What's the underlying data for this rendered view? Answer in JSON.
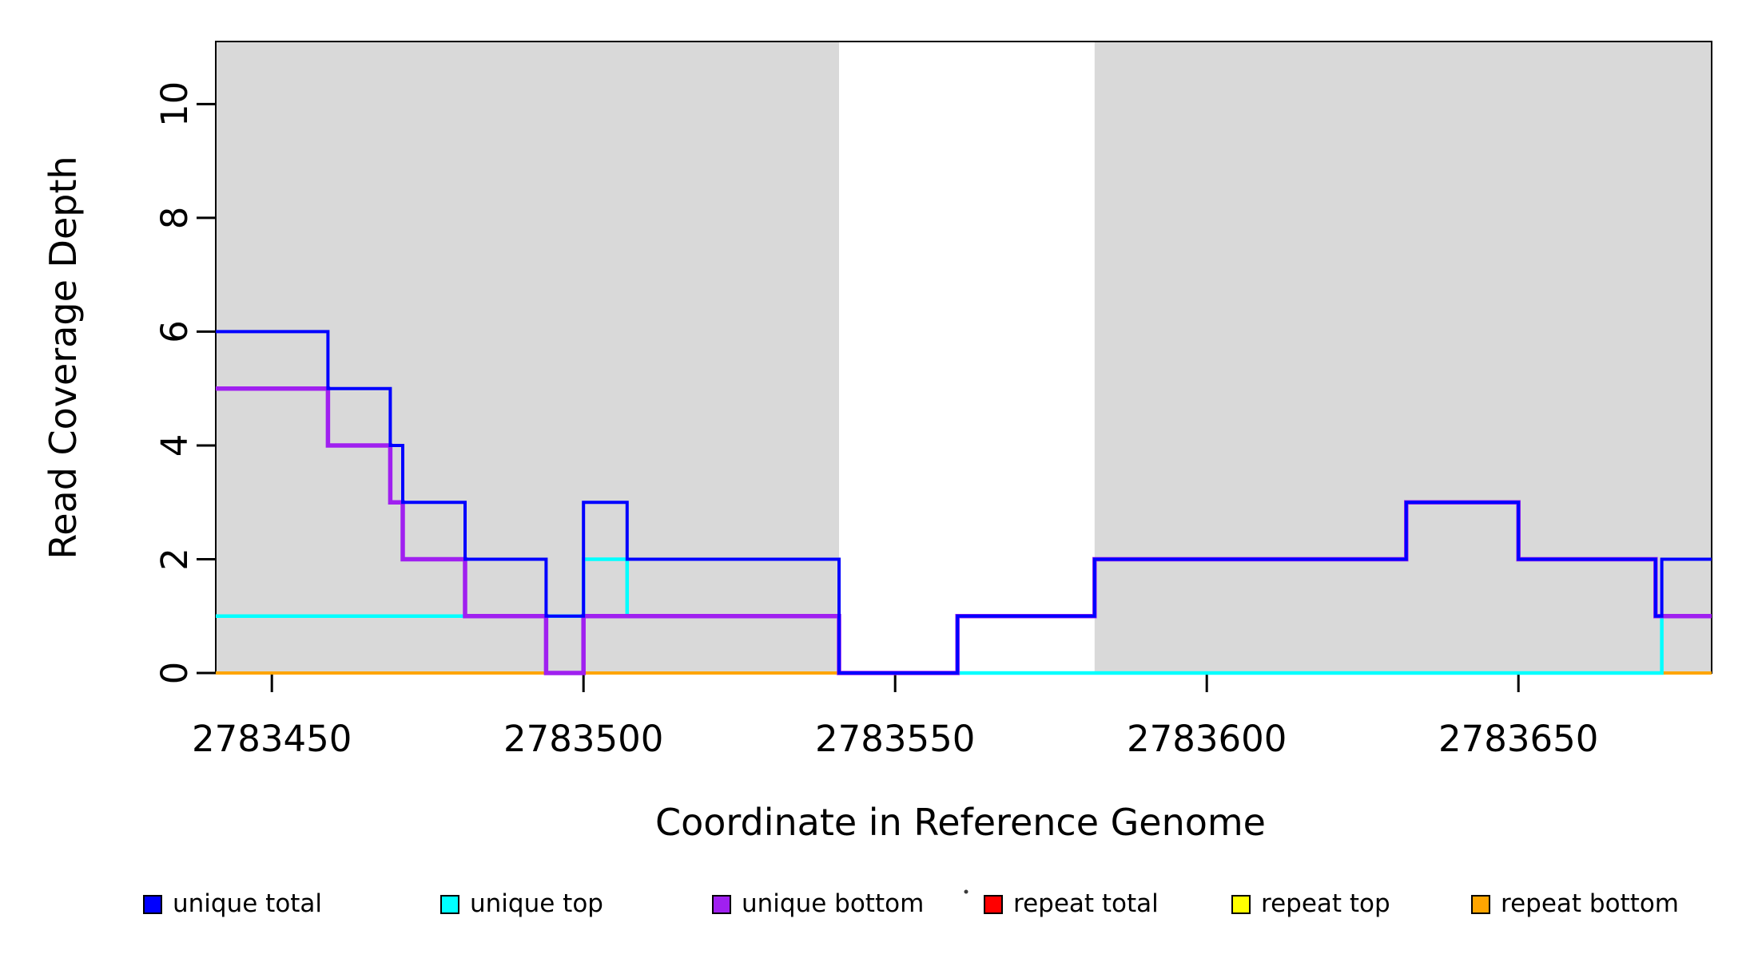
{
  "chart_data": {
    "type": "line",
    "subtype": "step",
    "title": "",
    "xlabel": "Coordinate in Reference Genome",
    "ylabel": "Read Coverage Depth",
    "xlim": [
      2783441,
      2783681
    ],
    "ylim": [
      0,
      11.1
    ],
    "x_ticks": [
      2783450,
      2783500,
      2783550,
      2783600,
      2783650
    ],
    "x_tick_labels": [
      "2783450",
      "2783500",
      "2783550",
      "2783600",
      "2783650"
    ],
    "y_ticks": [
      0,
      2,
      4,
      6,
      8,
      10
    ],
    "y_tick_labels": [
      "0",
      "2",
      "4",
      "6",
      "8",
      "10"
    ],
    "grid": false,
    "plot_background": "#ffffff",
    "shaded_regions": [
      {
        "start": 2783441,
        "end": 2783541,
        "color": "#d9d9d9"
      },
      {
        "start": 2783582,
        "end": 2783681,
        "color": "#d9d9d9"
      }
    ],
    "series": [
      {
        "name": "repeat total",
        "color": "#FF0000",
        "line_width": 3,
        "steps": [
          [
            2783441,
            0
          ]
        ]
      },
      {
        "name": "repeat top",
        "color": "#FFFF00",
        "line_width": 3,
        "steps": [
          [
            2783441,
            0
          ]
        ]
      },
      {
        "name": "repeat bottom",
        "color": "#FFA500",
        "line_width": 4,
        "steps": [
          [
            2783441,
            0
          ]
        ]
      },
      {
        "name": "unique top",
        "color": "#00FFFF",
        "line_width": 4.5,
        "steps": [
          [
            2783441,
            1
          ],
          [
            2783500,
            2
          ],
          [
            2783507,
            1
          ],
          [
            2783541,
            0
          ],
          [
            2783673,
            1
          ]
        ]
      },
      {
        "name": "unique bottom",
        "color": "#A020F0",
        "line_width": 5.5,
        "steps": [
          [
            2783441,
            5
          ],
          [
            2783459,
            4
          ],
          [
            2783469,
            3
          ],
          [
            2783471,
            2
          ],
          [
            2783481,
            1
          ],
          [
            2783494,
            0
          ],
          [
            2783500,
            1
          ],
          [
            2783541,
            0
          ],
          [
            2783560,
            1
          ],
          [
            2783582,
            2
          ],
          [
            2783632,
            3
          ],
          [
            2783650,
            2
          ],
          [
            2783672,
            1
          ]
        ]
      },
      {
        "name": "unique total",
        "color": "#0000FF",
        "line_width": 4,
        "steps": [
          [
            2783441,
            6
          ],
          [
            2783459,
            5
          ],
          [
            2783469,
            4
          ],
          [
            2783471,
            3
          ],
          [
            2783481,
            2
          ],
          [
            2783494,
            1
          ],
          [
            2783500,
            3
          ],
          [
            2783507,
            2
          ],
          [
            2783541,
            0
          ],
          [
            2783560,
            1
          ],
          [
            2783582,
            2
          ],
          [
            2783632,
            3
          ],
          [
            2783650,
            2
          ],
          [
            2783672,
            1
          ],
          [
            2783673,
            2
          ]
        ]
      }
    ],
    "legend": {
      "position": "bottom",
      "items": [
        {
          "label": "unique total",
          "color": "#0000FF"
        },
        {
          "label": "unique top",
          "color": "#00FFFF"
        },
        {
          "label": "unique bottom",
          "color": "#A020F0"
        },
        {
          "label": "repeat total",
          "color": "#FF0000"
        },
        {
          "label": "repeat top",
          "color": "#FFFF00"
        },
        {
          "label": "repeat bottom",
          "color": "#FFA500"
        }
      ]
    }
  }
}
